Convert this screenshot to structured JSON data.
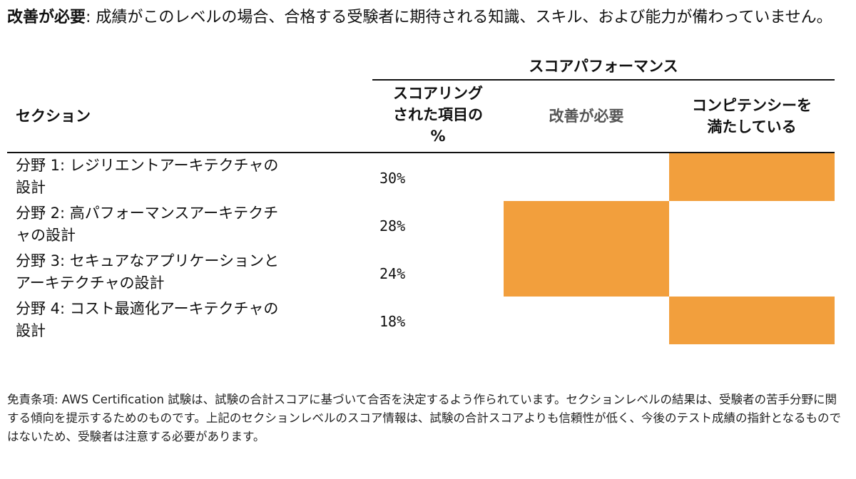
{
  "intro": {
    "bold_label": "改善が必要",
    "text": ": 成績がこのレベルの場合、合格する受験者に期待される知識、スキル、および能力が備わっていません。"
  },
  "table": {
    "group_header": "スコアパフォーマンス",
    "col_section": "セクション",
    "col_percent_line1": "スコアリング",
    "col_percent_line2": "された項目の",
    "col_percent_line3": "%",
    "col_needs_improvement": "改善が必要",
    "col_meets_line1": "コンピテンシーを",
    "col_meets_line2": "満たしている",
    "rows": [
      {
        "line1": "分野 1: レジリエントアーキテクチャの",
        "line2": "設計",
        "percent": "30%",
        "rating": "meets"
      },
      {
        "line1": "分野 2: 高パフォーマンスアーキテクチ",
        "line2": "ャの設計",
        "percent": "28%",
        "rating": "needs_improvement"
      },
      {
        "line1": "分野 3: セキュアなアプリケーションと",
        "line2": "アーキテクチャの設計",
        "percent": "24%",
        "rating": "needs_improvement"
      },
      {
        "line1": "分野 4: コスト最適化アーキテクチャの",
        "line2": "設計",
        "percent": "18%",
        "rating": "meets"
      }
    ],
    "fill_color": "#f29f3d"
  },
  "disclaimer": "免責条項: AWS Certification 試験は、試験の合計スコアに基づいて合否を決定するよう作られています。セクションレベルの結果は、受験者の苦手分野に関する傾向を提示するためのものです。上記のセクションレベルのスコア情報は、試験の合計スコアよりも信頼性が低く、今後のテスト成績の指針となるものではないため、受験者は注意する必要があります。"
}
